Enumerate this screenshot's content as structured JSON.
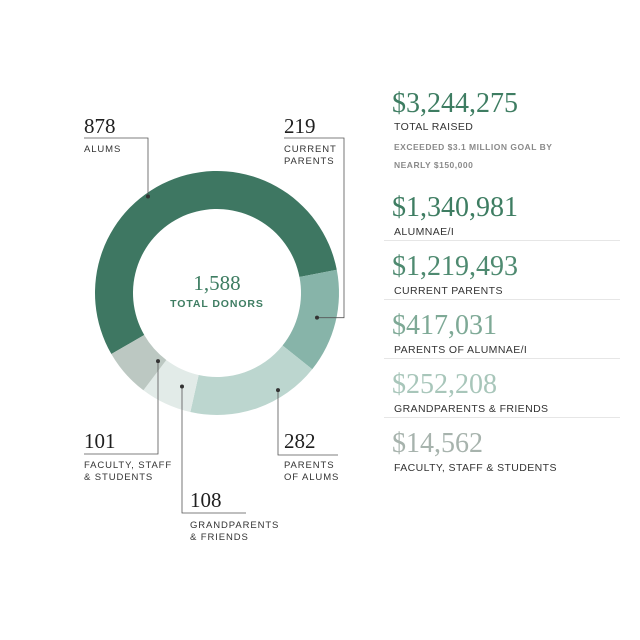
{
  "chart_data": {
    "type": "pie",
    "title": "",
    "total": {
      "value": "1,588",
      "label": "TOTAL DONORS"
    },
    "slices": [
      {
        "value": 878,
        "label": "878",
        "category": "ALUMS",
        "color": "#3e7762"
      },
      {
        "value": 219,
        "label": "219",
        "category": "CURRENT\nPARENTS",
        "color": "#87b4a9"
      },
      {
        "value": 282,
        "label": "282",
        "category": "PARENTS\nOF ALUMS",
        "color": "#bcd6cf"
      },
      {
        "value": 108,
        "label": "108",
        "category": "GRANDPARENTS\n& FRIENDS",
        "color": "#e2ebe8"
      },
      {
        "value": 101,
        "label": "101",
        "category": "FACULTY, STAFF\n& STUDENTS",
        "color": "#bcc8c2"
      }
    ]
  },
  "totals": {
    "raised_amount": "$3,244,275",
    "raised_label": "TOTAL RAISED",
    "note": "EXCEEDED $3.1 MILLION GOAL BY NEARLY $150,000"
  },
  "breakdown": [
    {
      "amount": "$1,340,981",
      "label": "ALUMNAE/I",
      "color": "#3e7d62"
    },
    {
      "amount": "$1,219,493",
      "label": "CURRENT PARENTS",
      "color": "#4e8a70"
    },
    {
      "amount": "$417,031",
      "label": "PARENTS OF ALUMNAE/I",
      "color": "#7ea996"
    },
    {
      "amount": "$252,208",
      "label": "GRANDPARENTS & FRIENDS",
      "color": "#a8c6ba"
    },
    {
      "amount": "$14,562",
      "label": "FACULTY, STAFF & STUDENTS",
      "color": "#a7b3ad"
    }
  ],
  "colors": {
    "raised": "#3e7d62"
  }
}
